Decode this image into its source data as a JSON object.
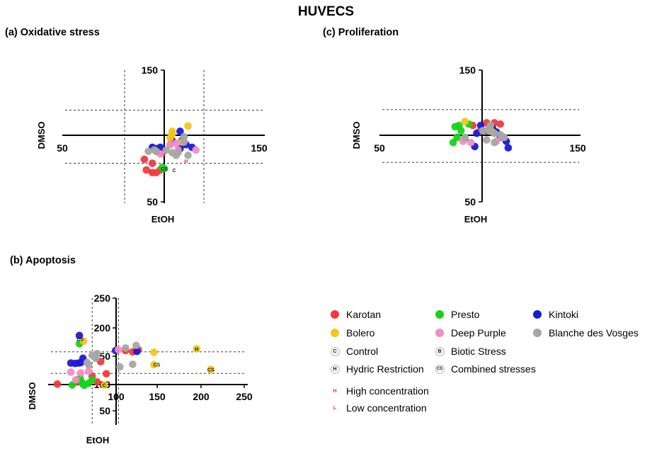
{
  "title": "HUVECS",
  "panels": [
    {
      "id": "a",
      "title": "(a) Oxidative stress"
    },
    {
      "id": "b",
      "title": "(b) Apoptosis"
    },
    {
      "id": "c",
      "title": "(c) Proliferation"
    }
  ],
  "legend": {
    "varieties": [
      {
        "label": "Karotan",
        "color": "#f03c3c"
      },
      {
        "label": "Presto",
        "color": "#17d417"
      },
      {
        "label": "Kintoki",
        "color": "#1a1ad6"
      },
      {
        "label": "Bolero",
        "color": "#f5c518"
      },
      {
        "label": "Deep Purple",
        "color": "#f58cc4"
      },
      {
        "label": "Blanche des Vosges",
        "color": "#a6a6a6"
      }
    ],
    "conditions": [
      {
        "label": "Control",
        "symbol": "C"
      },
      {
        "label": "Biotic Stress",
        "symbol": "B"
      },
      {
        "label": "Hydric Restriction",
        "symbol": "H"
      },
      {
        "label": "Combined stresses",
        "symbol": "CS"
      }
    ],
    "concentrations": [
      {
        "label": "High concentration",
        "symbol": "H"
      },
      {
        "label": "Low concentration",
        "symbol": "L"
      }
    ]
  },
  "chart_data": [
    {
      "type": "scatter",
      "title": "(a) Oxidative stress",
      "xlabel": "EtOH",
      "ylabel": "DMSO",
      "xlim": [
        50,
        150
      ],
      "ylim": [
        50,
        150
      ],
      "x_ticks": [
        "50",
        "150"
      ],
      "y_ticks": [
        "150",
        "50"
      ],
      "axes_cross": [
        100,
        100
      ],
      "guide_lines_x": [
        80,
        120
      ],
      "guide_lines_y": [
        80,
        120
      ],
      "series": [
        {
          "color": "#f03c3c",
          "points": [
            [
              94,
              80
            ],
            [
              91,
              75
            ],
            [
              94,
              73
            ],
            [
              96,
              73
            ],
            [
              98,
              75
            ],
            [
              90,
              83
            ],
            [
              99,
              88
            ]
          ]
        },
        {
          "color": "#17d417",
          "points": [
            [
              103,
              94
            ],
            [
              96,
              89
            ],
            [
              100,
              76
            ],
            [
              99,
              77
            ]
          ]
        },
        {
          "color": "#1a1ad6",
          "points": [
            [
              96,
              91
            ],
            [
              98,
              92
            ],
            [
              94,
              92
            ],
            [
              111,
              94
            ],
            [
              108,
              91
            ],
            [
              109,
              97
            ],
            [
              104,
              97
            ],
            [
              108,
              104
            ],
            [
              114,
              92
            ]
          ]
        },
        {
          "color": "#f5c518",
          "points": [
            [
              103,
              99
            ],
            [
              104,
              102
            ],
            [
              104,
              104
            ],
            [
              112,
              108
            ],
            [
              109,
              96
            ]
          ]
        },
        {
          "color": "#f58cc4",
          "points": [
            [
              103,
              94
            ],
            [
              106,
              95
            ],
            [
              107,
              90
            ],
            [
              116,
              90
            ],
            [
              98,
              87
            ]
          ]
        },
        {
          "color": "#a6a6a6",
          "points": [
            [
              92,
              89
            ],
            [
              95,
              90
            ],
            [
              101,
              90
            ],
            [
              104,
              88
            ],
            [
              107,
              88
            ],
            [
              110,
              100
            ],
            [
              110,
              96
            ],
            [
              106,
              86
            ],
            [
              112,
              86
            ],
            [
              96,
              89
            ]
          ]
        }
      ],
      "labels": [
        {
          "text": "CS",
          "x": 100,
          "y": 76,
          "color": "#222"
        },
        {
          "text": "C",
          "x": 105,
          "y": 75,
          "color": "#222"
        },
        {
          "text": "H",
          "x": 111,
          "y": 82,
          "color": "#e0312f"
        },
        {
          "text": "H",
          "x": 93,
          "y": 74,
          "color": "#e0312f"
        }
      ]
    },
    {
      "type": "scatter",
      "title": "(b) Apoptosis",
      "xlabel": "EtOH",
      "ylabel": "DMSO",
      "xlim": [
        -25,
        250
      ],
      "ylim": [
        -45,
        250
      ],
      "x_ticks": [
        "50",
        "100",
        "150",
        "200",
        "250"
      ],
      "y_ticks": [
        "250",
        "200",
        "150",
        "100",
        "50"
      ],
      "axes_cross": [
        50,
        100
      ],
      "guide_lines_x": [
        33,
        70
      ],
      "guide_lines_y": [
        75,
        125
      ],
      "series": [
        {
          "color": "#f03c3c",
          "points": [
            [
              45,
              102
            ],
            [
              53,
              74
            ],
            [
              33,
              68
            ],
            [
              40,
              55
            ],
            [
              90,
              125
            ],
            [
              98,
              130
            ],
            [
              80,
              128
            ],
            [
              12,
              55
            ],
            [
              -16,
              50
            ]
          ]
        },
        {
          "color": "#17d417",
          "points": [
            [
              15,
              144
            ],
            [
              16,
              64
            ],
            [
              18,
              55
            ],
            [
              20,
              50
            ],
            [
              28,
              52
            ],
            [
              22,
              47
            ],
            [
              33,
              60
            ],
            [
              5,
              48
            ]
          ]
        },
        {
          "color": "#1a1ad6",
          "points": [
            [
              15,
              163
            ],
            [
              20,
              110
            ],
            [
              17,
              100
            ],
            [
              14,
              99
            ],
            [
              9,
              98
            ],
            [
              3,
              99
            ],
            [
              66,
              128
            ],
            [
              96,
              126
            ]
          ]
        },
        {
          "color": "#f5c518",
          "points": [
            [
              21,
              150
            ],
            [
              120,
              124
            ],
            [
              180,
              132
            ],
            [
              200,
              84
            ],
            [
              120,
              95
            ],
            [
              50,
              48
            ]
          ]
        },
        {
          "color": "#f58cc4",
          "points": [
            [
              70,
              130
            ],
            [
              28,
              80
            ],
            [
              17,
              76
            ],
            [
              3,
              78
            ],
            [
              10,
              60
            ]
          ]
        },
        {
          "color": "#a6a6a6",
          "points": [
            [
              95,
              140
            ],
            [
              28,
              95
            ],
            [
              38,
              110
            ],
            [
              40,
              121
            ],
            [
              33,
              117
            ],
            [
              26,
              100
            ],
            [
              72,
              90
            ],
            [
              90,
              96
            ],
            [
              80,
              134
            ]
          ]
        }
      ],
      "labels": [
        {
          "text": "CS",
          "x": 200,
          "y": 84,
          "color": "#222"
        },
        {
          "text": "CS",
          "x": 124,
          "y": 96,
          "color": "#222"
        },
        {
          "text": "H",
          "x": 180,
          "y": 132,
          "color": "#222"
        },
        {
          "text": "C",
          "x": 50,
          "y": 48,
          "color": "#222"
        },
        {
          "text": "CS",
          "x": 16,
          "y": 155,
          "color": "#222"
        }
      ]
    },
    {
      "type": "scatter",
      "title": "(c) Proliferation",
      "xlabel": "EtOH",
      "ylabel": "DMSO",
      "xlim": [
        50,
        150
      ],
      "ylim": [
        50,
        150
      ],
      "x_ticks": [
        "50",
        "150"
      ],
      "y_ticks": [
        "150",
        "50"
      ],
      "axes_cross": [
        100,
        100
      ],
      "guide_lines_x": [],
      "guide_lines_y": [
        80,
        120
      ],
      "series": [
        {
          "color": "#f03c3c",
          "points": [
            [
              103,
              110
            ],
            [
              107,
              110
            ],
            [
              110,
              109
            ],
            [
              105,
              107
            ],
            [
              96,
              108
            ],
            [
              99,
              103
            ]
          ]
        },
        {
          "color": "#17d417",
          "points": [
            [
              86,
              95
            ],
            [
              92,
              98
            ],
            [
              88,
              99
            ],
            [
              90,
              104
            ],
            [
              89,
              108
            ],
            [
              94,
              109
            ],
            [
              87,
              107
            ]
          ]
        },
        {
          "color": "#1a1ad6",
          "points": [
            [
              98,
              102
            ],
            [
              100,
              108
            ],
            [
              108,
              103
            ],
            [
              114,
              91
            ],
            [
              97,
              92
            ],
            [
              110,
              99
            ],
            [
              113,
              96
            ],
            [
              103,
              104
            ],
            [
              106,
              106
            ]
          ]
        },
        {
          "color": "#f5c518",
          "points": [
            [
              92,
              111
            ],
            [
              104,
              105
            ],
            [
              106,
              103
            ]
          ]
        },
        {
          "color": "#f58cc4",
          "points": [
            [
              91,
              96
            ],
            [
              95,
              95
            ],
            [
              111,
              99
            ],
            [
              108,
              96
            ]
          ]
        },
        {
          "color": "#a6a6a6",
          "points": [
            [
              92,
              99
            ],
            [
              101,
              104
            ],
            [
              104,
              104
            ],
            [
              107,
              102
            ],
            [
              110,
              101
            ],
            [
              103,
              97
            ],
            [
              107,
              95
            ],
            [
              112,
              99
            ],
            [
              105,
              108
            ]
          ]
        }
      ],
      "labels": []
    }
  ]
}
